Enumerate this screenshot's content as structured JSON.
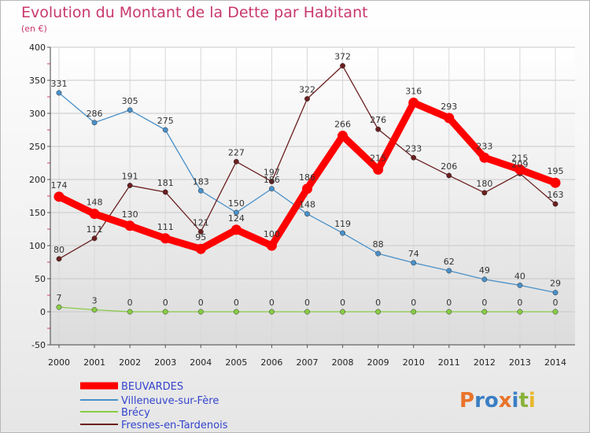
{
  "chart_data": {
    "type": "line",
    "title": "Evolution du Montant de la Dette par Habitant",
    "subtitle": "(en €)",
    "categories": [
      "2000",
      "2001",
      "2002",
      "2003",
      "2004",
      "2005",
      "2006",
      "2007",
      "2008",
      "2009",
      "2010",
      "2011",
      "2012",
      "2013",
      "2014"
    ],
    "ylim": [
      -50,
      400
    ],
    "yticks": [
      -50,
      0,
      50,
      100,
      150,
      200,
      250,
      300,
      350,
      400
    ],
    "grid": true,
    "legend_position": "bottom-left",
    "series": [
      {
        "name": "BEUVARDES",
        "color": "#ff0000",
        "values": [
          174,
          148,
          130,
          111,
          95,
          124,
          100,
          186,
          266,
          215,
          316,
          293,
          233,
          215,
          195
        ]
      },
      {
        "name": "Villeneuve-sur-Fère",
        "color": "#4a90c8",
        "values": [
          331,
          286,
          305,
          275,
          183,
          150,
          186,
          148,
          119,
          88,
          74,
          62,
          49,
          40,
          29
        ]
      },
      {
        "name": "Brécy",
        "color": "#88cc44",
        "values": [
          7,
          3,
          0,
          0,
          0,
          0,
          0,
          0,
          0,
          0,
          0,
          0,
          0,
          0,
          0
        ]
      },
      {
        "name": "Fresnes-en-Tardenois",
        "color": "#6b1f1f",
        "values": [
          80,
          111,
          191,
          181,
          121,
          227,
          197,
          322,
          372,
          276,
          233,
          206,
          180,
          209,
          163
        ]
      }
    ]
  },
  "logo": {
    "text": "Proxiti"
  }
}
